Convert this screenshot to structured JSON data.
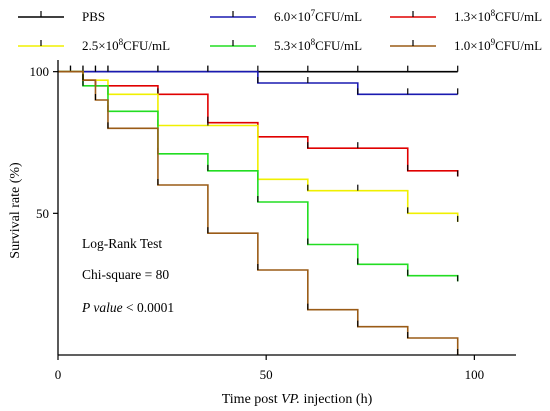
{
  "chart_data": {
    "type": "line",
    "step": true,
    "title": "",
    "xlabel_parts": [
      "Time post ",
      "VP.",
      " injection (h)"
    ],
    "ylabel": "Survival rate (%)",
    "xlim": [
      0,
      110
    ],
    "ylim": [
      0,
      102
    ],
    "xticks": [
      0,
      50,
      100
    ],
    "yticks": [
      50,
      100
    ],
    "grid": false,
    "legend_position": "top",
    "series": [
      {
        "name": "PBS",
        "legend_parts": [
          "PBS"
        ],
        "color": "#000000",
        "x": [
          0,
          96
        ],
        "y": [
          100,
          100
        ],
        "censor_x": [
          3,
          6,
          9,
          12,
          24,
          36,
          48,
          60,
          72,
          84,
          96
        ]
      },
      {
        "name": "6.0×10^7CFU/mL",
        "legend_parts": [
          "6.0×10",
          "7",
          "CFU/mL"
        ],
        "color": "#1a1ab0",
        "x": [
          0,
          48,
          72,
          96
        ],
        "y": [
          100,
          96,
          92,
          92
        ],
        "censor_x": [
          3,
          6,
          9,
          12,
          24,
          36,
          48,
          60,
          72,
          84,
          96
        ]
      },
      {
        "name": "1.3×10^8CFU/mL",
        "legend_parts": [
          "1.3×10",
          "8",
          "CFU/mL"
        ],
        "color": "#e00000",
        "x": [
          0,
          6,
          9,
          24,
          36,
          48,
          60,
          84,
          96
        ],
        "y": [
          100,
          97,
          95,
          92,
          82,
          77,
          73,
          65,
          63
        ],
        "censor_x": [
          6,
          9,
          24,
          36,
          48,
          60,
          72,
          84,
          96
        ]
      },
      {
        "name": "2.5×10^8CFU/mL",
        "legend_parts": [
          "2.5×10",
          "8",
          "CFU/mL"
        ],
        "color": "#f0f000",
        "x": [
          0,
          6,
          12,
          24,
          48,
          60,
          84,
          96
        ],
        "y": [
          100,
          97,
          92,
          81,
          62,
          58,
          50,
          47
        ],
        "censor_x": [
          6,
          12,
          24,
          36,
          48,
          60,
          72,
          84,
          96
        ]
      },
      {
        "name": "5.3×10^8CFU/mL",
        "legend_parts": [
          "5.3×10",
          "8",
          "CFU/mL"
        ],
        "color": "#22dd22",
        "x": [
          0,
          6,
          12,
          24,
          36,
          48,
          60,
          72,
          84,
          96
        ],
        "y": [
          100,
          95,
          86,
          71,
          65,
          54,
          39,
          32,
          28,
          26
        ],
        "censor_x": [
          6,
          12,
          24,
          36,
          48,
          60,
          72,
          84,
          96
        ]
      },
      {
        "name": "1.0×10^9CFU/mL",
        "legend_parts": [
          "1.0×10",
          "9",
          "CFU/mL"
        ],
        "color": "#9a5b16",
        "x": [
          0,
          6,
          9,
          12,
          24,
          36,
          48,
          60,
          72,
          84,
          96
        ],
        "y": [
          100,
          97,
          90,
          80,
          60,
          43,
          30,
          16,
          10,
          6,
          0
        ],
        "censor_x": [
          6,
          9,
          12,
          24,
          36,
          48,
          60,
          72,
          84,
          96
        ]
      }
    ],
    "annotations": {
      "test": "Log-Rank Test",
      "chi_square": "Chi-square = 80",
      "p_value_label": "P value",
      "p_value_text": " < 0.0001"
    }
  }
}
